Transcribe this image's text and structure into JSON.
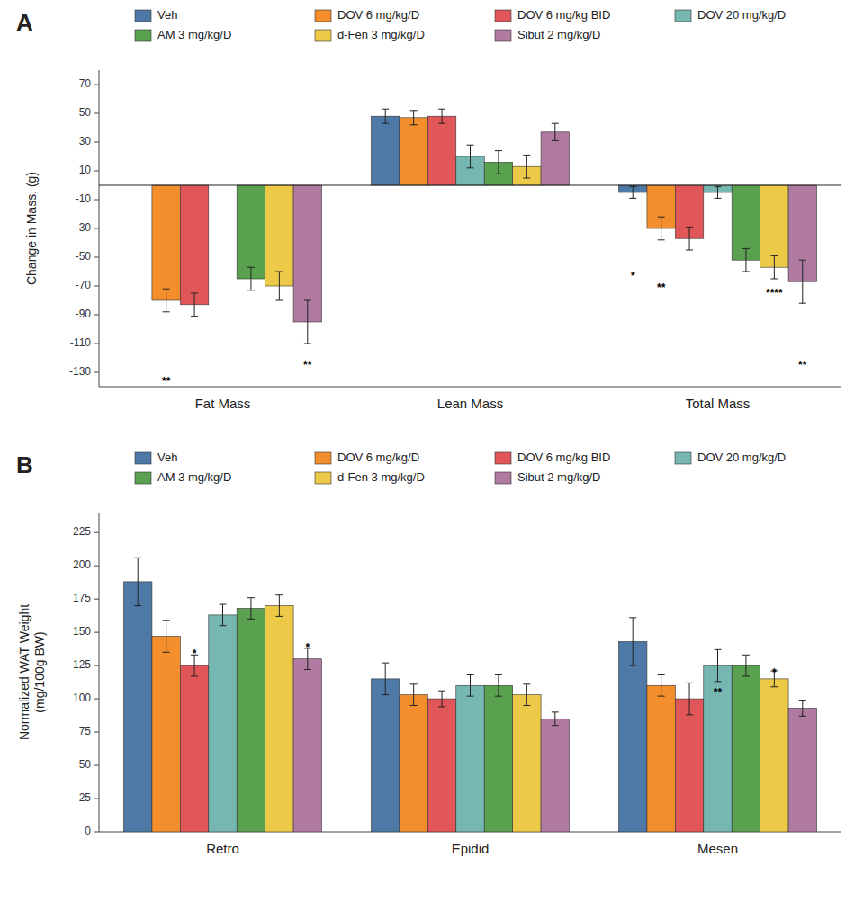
{
  "chart_data": [
    {
      "type": "bar",
      "title": "A",
      "y_label": "Change in Mass, (g)",
      "categories": [
        "Fat Mass",
        "Lean Mass",
        "Total Mass"
      ],
      "series": [
        {
          "name": "Veh",
          "color": "#4e79a7",
          "values": [
            null,
            48,
            -5
          ],
          "errors": [
            null,
            5,
            4
          ]
        },
        {
          "name": "DOV 6 mg/kg/D",
          "color": "#f28e2b",
          "values": [
            -80,
            47,
            -30
          ],
          "errors": [
            8,
            5,
            8
          ]
        },
        {
          "name": "DOV 6 mg/kg BID",
          "color": "#e15759",
          "values": [
            -83,
            48,
            -37
          ],
          "errors": [
            8,
            5,
            8
          ]
        },
        {
          "name": "DOV 20 mg/kg/D",
          "color": "#76b7b2",
          "values": [
            null,
            20,
            -5
          ],
          "errors": [
            null,
            8,
            4
          ]
        },
        {
          "name": "AM 3 mg/kg/D",
          "color": "#59a14f",
          "values": [
            -65,
            16,
            -52
          ],
          "errors": [
            8,
            8,
            8
          ]
        },
        {
          "name": "d-Fen 3 mg/kg/D",
          "color": "#edc948",
          "values": [
            -70,
            13,
            -57
          ],
          "errors": [
            10,
            8,
            8
          ]
        },
        {
          "name": "Sibut 2 mg/kg/D",
          "color": "#b07aa1",
          "values": [
            -95,
            37,
            -67
          ],
          "errors": [
            15,
            6,
            15
          ]
        }
      ],
      "ylim": [
        -140,
        80
      ],
      "yticks": [
        -130,
        -110,
        -90,
        -70,
        -50,
        -30,
        -10,
        10,
        30,
        50,
        70
      ],
      "grid": false,
      "legend": "top",
      "annotations": [
        {
          "text": "**",
          "category": "Fat Mass",
          "series": "DOV 6 mg/kg/D",
          "y": -133
        },
        {
          "text": "**",
          "category": "Fat Mass",
          "series": "Sibut 2 mg/kg/D",
          "y": -122
        },
        {
          "text": "*",
          "category": "Total Mass",
          "series": "Veh",
          "y": -60
        },
        {
          "text": "**",
          "category": "Total Mass",
          "series": "DOV 6 mg/kg/D",
          "y": -68
        },
        {
          "text": "****",
          "category": "Total Mass",
          "series": "d-Fen 3 mg/kg/D",
          "y": -72
        },
        {
          "text": "**",
          "category": "Total Mass",
          "series": "Sibut 2 mg/kg/D",
          "y": -122
        }
      ]
    },
    {
      "type": "bar",
      "title": "B",
      "y_label": "Normalized WAT Weight\n(mg/100g BW)",
      "categories": [
        "Retro",
        "Epidid",
        "Mesen"
      ],
      "series": [
        {
          "name": "Veh",
          "color": "#4e79a7",
          "values": [
            188,
            115,
            143
          ],
          "errors": [
            18,
            12,
            18
          ]
        },
        {
          "name": "DOV 6 mg/kg/D",
          "color": "#f28e2b",
          "values": [
            147,
            103,
            110
          ],
          "errors": [
            12,
            8,
            8
          ]
        },
        {
          "name": "DOV 6 mg/kg BID",
          "color": "#e15759",
          "values": [
            125,
            100,
            100
          ],
          "errors": [
            8,
            6,
            12
          ]
        },
        {
          "name": "DOV 20 mg/kg/D",
          "color": "#76b7b2",
          "values": [
            163,
            110,
            125
          ],
          "errors": [
            8,
            8,
            12
          ]
        },
        {
          "name": "AM 3 mg/kg/D",
          "color": "#59a14f",
          "values": [
            168,
            110,
            125
          ],
          "errors": [
            8,
            8,
            8
          ]
        },
        {
          "name": "d-Fen 3 mg/kg/D",
          "color": "#edc948",
          "values": [
            170,
            103,
            115
          ],
          "errors": [
            8,
            8,
            6
          ]
        },
        {
          "name": "Sibut 2 mg/kg/D",
          "color": "#b07aa1",
          "values": [
            130,
            85,
            93
          ],
          "errors": [
            8,
            5,
            6
          ]
        }
      ],
      "ylim": [
        0,
        240
      ],
      "yticks": [
        0,
        25,
        50,
        75,
        100,
        125,
        150,
        175,
        200,
        225
      ],
      "grid": false,
      "legend": "top",
      "annotations": [
        {
          "text": "*",
          "category": "Retro",
          "series": "DOV 6 mg/kg BID",
          "y": 137
        },
        {
          "text": "*",
          "category": "Retro",
          "series": "Sibut 2 mg/kg/D",
          "y": 142
        },
        {
          "text": "**",
          "category": "Mesen",
          "series": "DOV 20 mg/kg/D",
          "y": 108
        },
        {
          "text": "*",
          "category": "Mesen",
          "series": "d-Fen 3 mg/kg/D",
          "y": 123
        }
      ]
    }
  ]
}
